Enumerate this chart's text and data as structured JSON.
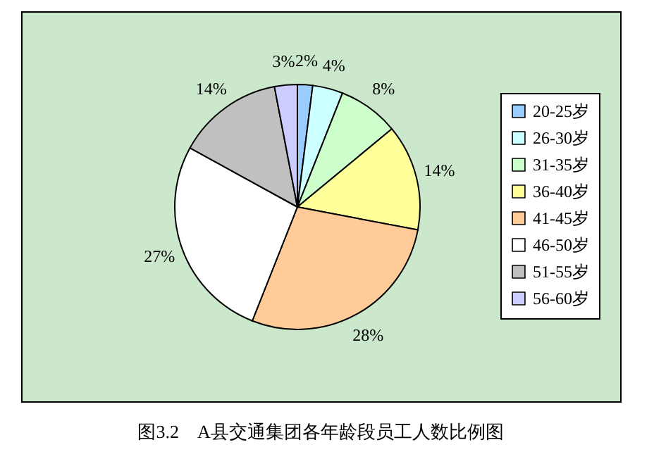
{
  "chart_data": {
    "type": "pie",
    "title": "图3.2　A县交通集团各年龄段员工人数比例图",
    "categories": [
      "20-25岁",
      "26-30岁",
      "31-35岁",
      "36-40岁",
      "41-45岁",
      "46-50岁",
      "51-55岁",
      "56-60岁"
    ],
    "values": [
      2,
      4,
      8,
      14,
      28,
      27,
      14,
      3
    ],
    "value_labels": [
      "2%",
      "4%",
      "8%",
      "14%",
      "28%",
      "27%",
      "14%",
      "3%"
    ],
    "colors": [
      "#99ccff",
      "#ccffff",
      "#ccffcc",
      "#ffff99",
      "#ffcc99",
      "#ffffff",
      "#c0c0c0",
      "#ccccff"
    ],
    "legend": "right"
  }
}
